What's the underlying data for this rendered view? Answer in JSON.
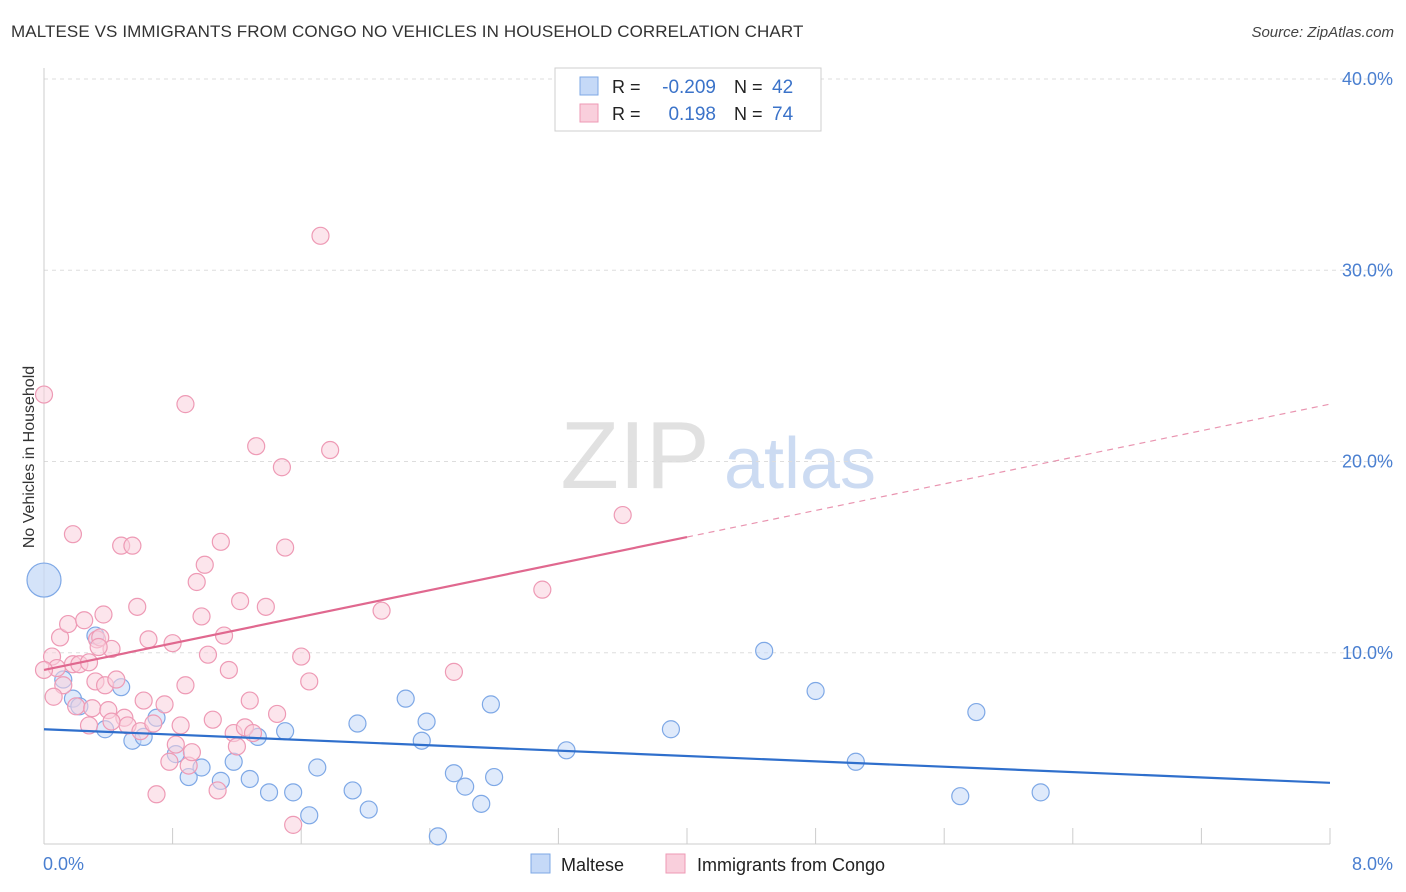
{
  "title": "MALTESE VS IMMIGRANTS FROM CONGO NO VEHICLES IN HOUSEHOLD CORRELATION CHART",
  "source": "Source: ZipAtlas.com",
  "watermark": {
    "zip": "ZIP",
    "atlas": "atlas"
  },
  "colors": {
    "maltese_fill": "#c5d9f7",
    "maltese_stroke": "#7ea8e6",
    "maltese_line": "#2f6fcc",
    "congo_fill": "#f9cfdc",
    "congo_stroke": "#ee9ab5",
    "congo_line": "#e0688f",
    "tick_label": "#4a7fd0",
    "grid": "#dddddd"
  },
  "stats": [
    {
      "r_label": "R =",
      "r_value": "-0.209",
      "n_label": "N =",
      "n_value": "42"
    },
    {
      "r_label": "R =",
      "r_value": "0.198",
      "n_label": "N =",
      "n_value": "74"
    }
  ],
  "chart_data": {
    "type": "scatter",
    "xlabel": "",
    "ylabel": "No Vehicles in Household",
    "xlim": [
      0,
      8
    ],
    "ylim": [
      0,
      40
    ],
    "x_tick_labels": [
      {
        "value": 0,
        "label": "0.0%"
      },
      {
        "value": 8,
        "label": "8.0%"
      }
    ],
    "y_tick_labels": [
      {
        "value": 10,
        "label": "10.0%"
      },
      {
        "value": 20,
        "label": "20.0%"
      },
      {
        "value": 30,
        "label": "30.0%"
      },
      {
        "value": 40,
        "label": "40.0%"
      }
    ],
    "grid": true,
    "legend": "bottom-center",
    "series": [
      {
        "name": "Maltese",
        "trend": {
          "x0": 0,
          "y0": 6.0,
          "x1": 8,
          "y1": 3.2,
          "solid_until": 8
        },
        "points": [
          [
            0.0,
            13.8,
            "big"
          ],
          [
            0.12,
            8.6
          ],
          [
            0.18,
            7.6
          ],
          [
            0.22,
            7.2
          ],
          [
            0.32,
            10.9
          ],
          [
            0.38,
            6.0
          ],
          [
            0.48,
            8.2
          ],
          [
            0.55,
            5.4
          ],
          [
            0.62,
            5.6
          ],
          [
            0.7,
            6.6
          ],
          [
            0.82,
            4.7
          ],
          [
            0.9,
            3.5
          ],
          [
            0.98,
            4.0
          ],
          [
            1.1,
            3.3
          ],
          [
            1.18,
            4.3
          ],
          [
            1.28,
            3.4
          ],
          [
            1.33,
            5.6
          ],
          [
            1.4,
            2.7
          ],
          [
            1.5,
            5.9
          ],
          [
            1.55,
            2.7
          ],
          [
            1.65,
            1.5
          ],
          [
            1.7,
            4.0
          ],
          [
            1.92,
            2.8
          ],
          [
            1.95,
            6.3
          ],
          [
            2.02,
            1.8
          ],
          [
            2.25,
            7.6
          ],
          [
            2.35,
            5.4
          ],
          [
            2.38,
            6.4
          ],
          [
            2.55,
            3.7
          ],
          [
            2.62,
            3.0
          ],
          [
            2.45,
            0.4
          ],
          [
            2.72,
            2.1
          ],
          [
            2.78,
            7.3
          ],
          [
            2.8,
            3.5
          ],
          [
            3.25,
            4.9
          ],
          [
            3.9,
            6.0
          ],
          [
            4.48,
            10.1
          ],
          [
            4.8,
            8.0
          ],
          [
            5.05,
            4.3
          ],
          [
            5.7,
            2.5
          ],
          [
            5.8,
            6.9
          ],
          [
            6.2,
            2.7
          ]
        ]
      },
      {
        "name": "Immigrants from Congo",
        "trend": {
          "x0": 0,
          "y0": 9.1,
          "x1": 8,
          "y1": 23.0,
          "solid_until": 4.0
        },
        "points": [
          [
            0.0,
            23.5
          ],
          [
            0.05,
            9.8
          ],
          [
            0.08,
            9.2
          ],
          [
            0.1,
            10.8
          ],
          [
            0.12,
            8.3
          ],
          [
            0.15,
            11.5
          ],
          [
            0.18,
            16.2
          ],
          [
            0.18,
            9.4
          ],
          [
            0.2,
            7.2
          ],
          [
            0.22,
            9.4
          ],
          [
            0.25,
            11.7
          ],
          [
            0.28,
            6.2
          ],
          [
            0.3,
            7.1
          ],
          [
            0.32,
            8.5
          ],
          [
            0.33,
            10.7
          ],
          [
            0.35,
            10.8
          ],
          [
            0.37,
            12.0
          ],
          [
            0.38,
            8.3
          ],
          [
            0.4,
            7.0
          ],
          [
            0.42,
            10.2
          ],
          [
            0.45,
            8.6
          ],
          [
            0.48,
            15.6
          ],
          [
            0.5,
            6.6
          ],
          [
            0.52,
            6.2
          ],
          [
            0.55,
            15.6
          ],
          [
            0.58,
            12.4
          ],
          [
            0.6,
            5.9
          ],
          [
            0.62,
            7.5
          ],
          [
            0.65,
            10.7
          ],
          [
            0.68,
            6.3
          ],
          [
            0.7,
            2.6
          ],
          [
            0.75,
            7.3
          ],
          [
            0.78,
            4.3
          ],
          [
            0.8,
            10.5
          ],
          [
            0.82,
            5.2
          ],
          [
            0.85,
            6.2
          ],
          [
            0.88,
            8.3
          ],
          [
            0.9,
            4.1
          ],
          [
            0.92,
            4.8
          ],
          [
            0.95,
            13.7
          ],
          [
            0.98,
            11.9
          ],
          [
            1.0,
            14.6
          ],
          [
            1.02,
            9.9
          ],
          [
            1.05,
            6.5
          ],
          [
            1.08,
            2.8
          ],
          [
            1.1,
            15.8
          ],
          [
            1.12,
            10.9
          ],
          [
            1.15,
            9.1
          ],
          [
            1.18,
            5.8
          ],
          [
            1.2,
            5.1
          ],
          [
            1.22,
            12.7
          ],
          [
            1.25,
            6.1
          ],
          [
            1.28,
            7.5
          ],
          [
            1.3,
            5.8
          ],
          [
            1.32,
            20.8
          ],
          [
            0.88,
            23.0
          ],
          [
            1.38,
            12.4
          ],
          [
            1.45,
            6.8
          ],
          [
            1.48,
            19.7
          ],
          [
            1.5,
            15.5
          ],
          [
            1.55,
            1.0
          ],
          [
            1.6,
            9.8
          ],
          [
            1.65,
            8.5
          ],
          [
            1.72,
            31.8
          ],
          [
            1.78,
            20.6
          ],
          [
            2.1,
            12.2
          ],
          [
            2.55,
            9.0
          ],
          [
            3.1,
            13.3
          ],
          [
            3.6,
            17.2
          ],
          [
            0.0,
            9.1
          ],
          [
            0.06,
            7.7
          ],
          [
            0.28,
            9.5
          ],
          [
            0.42,
            6.4
          ],
          [
            0.34,
            10.3
          ]
        ]
      }
    ]
  }
}
